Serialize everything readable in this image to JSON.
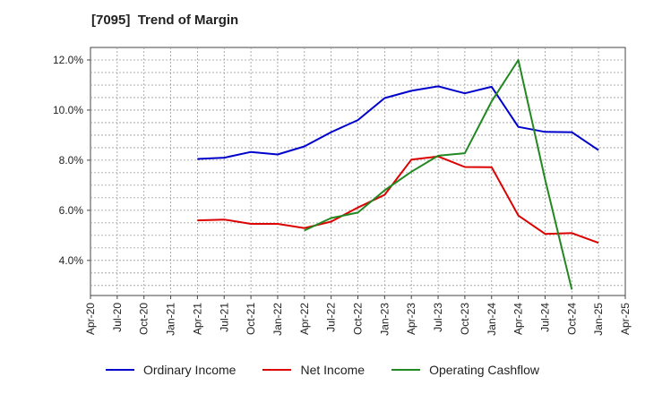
{
  "chart_data": {
    "type": "line",
    "title": "[7095]  Trend of Margin",
    "xlabel": "",
    "ylabel": "",
    "x_ticks": [
      "Apr-20",
      "Jul-20",
      "Oct-20",
      "Jan-21",
      "Apr-21",
      "Jul-21",
      "Oct-21",
      "Jan-22",
      "Apr-22",
      "Jul-22",
      "Oct-22",
      "Jan-23",
      "Apr-23",
      "Jul-23",
      "Oct-23",
      "Jan-24",
      "Apr-24",
      "Jul-24",
      "Oct-24",
      "Jan-25",
      "Apr-25"
    ],
    "y_ticks": [
      4.0,
      6.0,
      8.0,
      10.0,
      12.0
    ],
    "y_tick_labels": [
      "4.0%",
      "6.0%",
      "8.0%",
      "10.0%",
      "12.0%"
    ],
    "ylim": [
      2.6,
      12.5
    ],
    "grid": true,
    "legend_position": "bottom-center",
    "series": [
      {
        "name": "Ordinary Income",
        "color": "#0000cc",
        "x": [
          "Apr-21",
          "Jul-21",
          "Oct-21",
          "Jan-22",
          "Apr-22",
          "Jul-22",
          "Oct-22",
          "Jan-23",
          "Apr-23",
          "Jul-23",
          "Oct-23",
          "Jan-24",
          "Apr-24",
          "Jul-24",
          "Oct-24",
          "Jan-25"
        ],
        "values": [
          8.05,
          8.1,
          8.33,
          8.23,
          8.55,
          9.12,
          9.6,
          10.48,
          10.77,
          10.95,
          10.67,
          10.93,
          9.33,
          9.13,
          9.12,
          8.4
        ]
      },
      {
        "name": "Net Income",
        "color": "#dd0000",
        "x": [
          "Apr-21",
          "Jul-21",
          "Oct-21",
          "Jan-22",
          "Apr-22",
          "Jul-22",
          "Oct-22",
          "Jan-23",
          "Apr-23",
          "Jul-23",
          "Oct-23",
          "Jan-24",
          "Apr-24",
          "Jul-24",
          "Oct-24",
          "Jan-25"
        ],
        "values": [
          5.6,
          5.63,
          5.46,
          5.46,
          5.29,
          5.55,
          6.11,
          6.62,
          8.02,
          8.15,
          7.73,
          7.72,
          5.79,
          5.06,
          5.09,
          4.7
        ]
      },
      {
        "name": "Operating Cashflow",
        "color": "#228822",
        "x": [
          "Apr-22",
          "Jul-22",
          "Oct-22",
          "Jan-23",
          "Apr-23",
          "Jul-23",
          "Oct-23",
          "Jan-24",
          "Apr-24",
          "Jul-24",
          "Oct-24"
        ],
        "values": [
          5.2,
          5.69,
          5.91,
          6.8,
          7.54,
          8.18,
          8.28,
          10.35,
          12.0,
          7.23,
          2.84
        ]
      }
    ]
  }
}
